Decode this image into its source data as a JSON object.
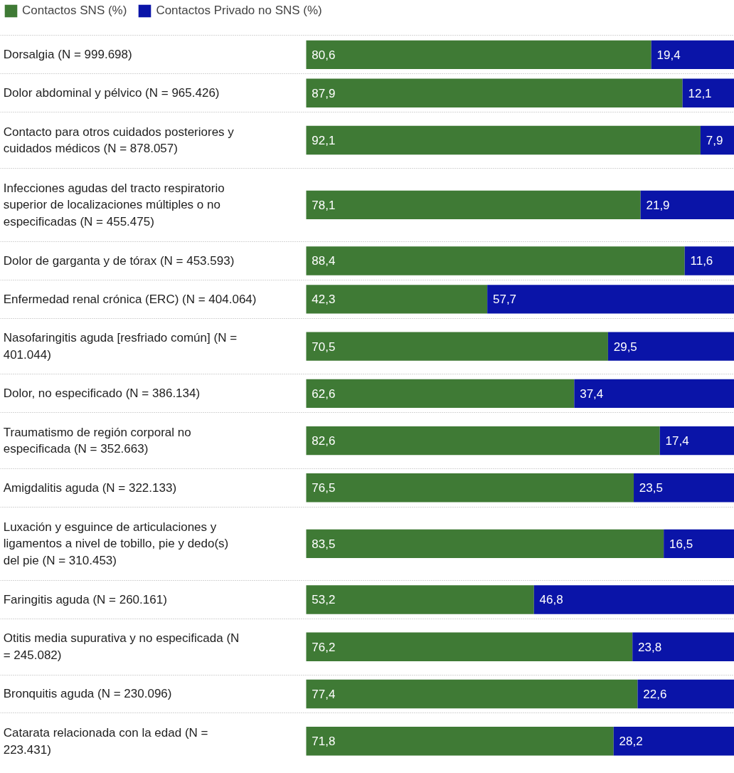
{
  "chart_data": {
    "type": "bar",
    "orientation": "horizontal",
    "stacked": true,
    "grid": "y",
    "legend": "top left",
    "xlim": [
      0,
      100
    ],
    "categories": [
      "Dorsalgia (N = 999.698)",
      "Dolor abdominal y pélvico (N = 965.426)",
      "Contacto para otros cuidados posteriores y cuidados médicos (N = 878.057)",
      "Infecciones agudas del tracto respiratorio superior de localizaciones múltiples o no especificadas (N = 455.475)",
      "Dolor de garganta y de tórax (N = 453.593)",
      "Enfermedad renal crónica (ERC) (N = 404.064)",
      "Nasofaringitis aguda [resfriado común] (N = 401.044)",
      "Dolor, no especificado (N = 386.134)",
      "Traumatismo de región corporal no especificada (N = 352.663)",
      "Amigdalitis aguda (N = 322.133)",
      "Luxación y esguince de articulaciones y ligamentos a nivel de tobillo, pie y dedo(s) del pie (N = 310.453)",
      "Faringitis aguda (N = 260.161)",
      "Otitis media supurativa y no especificada (N = 245.082)",
      "Bronquitis aguda (N = 230.096)",
      "Catarata relacionada con la edad (N = 223.431)"
    ],
    "series": [
      {
        "name": "Contactos SNS (%)",
        "color": "#3f7a35",
        "values": [
          80.6,
          87.9,
          92.1,
          78.1,
          88.4,
          42.3,
          70.5,
          62.6,
          82.6,
          76.5,
          83.5,
          53.2,
          76.2,
          77.4,
          71.8
        ],
        "value_labels": [
          "80,6",
          "87,9",
          "92,1",
          "78,1",
          "88,4",
          "42,3",
          "70,5",
          "62,6",
          "82,6",
          "76,5",
          "83,5",
          "53,2",
          "76,2",
          "77,4",
          "71,8"
        ]
      },
      {
        "name": "Contactos Privado no SNS (%)",
        "color": "#0a14a8",
        "values": [
          19.4,
          12.1,
          7.9,
          21.9,
          11.6,
          57.7,
          29.5,
          37.4,
          17.4,
          23.5,
          16.5,
          46.8,
          23.8,
          22.6,
          28.2
        ],
        "value_labels": [
          "19,4",
          "12,1",
          "7,9",
          "21,9",
          "11,6",
          "57,7",
          "29,5",
          "37,4",
          "17,4",
          "23,5",
          "16,5",
          "46,8",
          "23,8",
          "22,6",
          "28,2"
        ]
      }
    ]
  }
}
